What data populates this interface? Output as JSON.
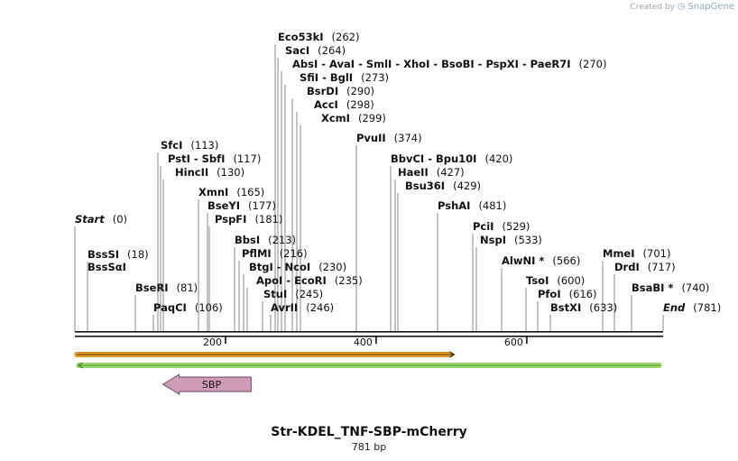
{
  "credit": {
    "prefix": "Created by",
    "brand": "SnapGene"
  },
  "sequence": {
    "name": "Str-KDEL_TNF-SBP-mCherry",
    "length_label": "781 bp",
    "length": 781
  },
  "ruler": {
    "ticks": [
      200,
      400,
      600
    ]
  },
  "sites": [
    {
      "name": "Start",
      "pos": 0,
      "pos_label": "(0)",
      "italic": true
    },
    {
      "name": "BssSI",
      "pos": 18,
      "pos_label": "(18)"
    },
    {
      "name": "BssSαI",
      "pos": 18,
      "pos_label": ""
    },
    {
      "name": "BseRI",
      "pos": 81,
      "pos_label": "(81)"
    },
    {
      "name": "PaqCI",
      "pos": 106,
      "pos_label": "(106)"
    },
    {
      "name": "SfcI",
      "pos": 113,
      "pos_label": "(113)"
    },
    {
      "name": "PstI  -  SbfI",
      "pos": 117,
      "pos_label": "(117)"
    },
    {
      "name": "HincII",
      "pos": 130,
      "pos_label": "(130)"
    },
    {
      "name": "XmnI",
      "pos": 165,
      "pos_label": "(165)"
    },
    {
      "name": "BseYI",
      "pos": 177,
      "pos_label": "(177)"
    },
    {
      "name": "PspFI",
      "pos": 181,
      "pos_label": "(181)"
    },
    {
      "name": "BbsI",
      "pos": 213,
      "pos_label": "(213)"
    },
    {
      "name": "PflMI",
      "pos": 216,
      "pos_label": "(216)"
    },
    {
      "name": "BtgI  -  NcoI",
      "pos": 230,
      "pos_label": "(230)"
    },
    {
      "name": "ApoI  -  EcoRI",
      "pos": 235,
      "pos_label": "(235)"
    },
    {
      "name": "StuI",
      "pos": 245,
      "pos_label": "(245)"
    },
    {
      "name": "AvrII",
      "pos": 246,
      "pos_label": "(246)"
    },
    {
      "name": "Eco53kI",
      "pos": 262,
      "pos_label": "(262)"
    },
    {
      "name": "SacI",
      "pos": 264,
      "pos_label": "(264)"
    },
    {
      "name": "AbsI  -  AvaI  -  SmlI  -  XhoI  -  BsoBI  -  PspXI  -  PaeR7I",
      "pos": 270,
      "pos_label": "(270)"
    },
    {
      "name": "SfiI  -  BglI",
      "pos": 273,
      "pos_label": "(273)"
    },
    {
      "name": "BsrDI",
      "pos": 290,
      "pos_label": "(290)"
    },
    {
      "name": "AccI",
      "pos": 298,
      "pos_label": "(298)"
    },
    {
      "name": "XcmI",
      "pos": 299,
      "pos_label": "(299)"
    },
    {
      "name": "PvuII",
      "pos": 374,
      "pos_label": "(374)"
    },
    {
      "name": "BbvCI  -  Bpu10I",
      "pos": 420,
      "pos_label": "(420)"
    },
    {
      "name": "HaeII",
      "pos": 427,
      "pos_label": "(427)"
    },
    {
      "name": "Bsu36I",
      "pos": 429,
      "pos_label": "(429)"
    },
    {
      "name": "PshAI",
      "pos": 481,
      "pos_label": "(481)"
    },
    {
      "name": "PciI",
      "pos": 529,
      "pos_label": "(529)"
    },
    {
      "name": "NspI",
      "pos": 533,
      "pos_label": "(533)"
    },
    {
      "name": "AlwNI *",
      "pos": 566,
      "pos_label": "(566)"
    },
    {
      "name": "TsoI",
      "pos": 600,
      "pos_label": "(600)"
    },
    {
      "name": "PfoI",
      "pos": 616,
      "pos_label": "(616)"
    },
    {
      "name": "BstXI",
      "pos": 633,
      "pos_label": "(633)"
    },
    {
      "name": "MmeI",
      "pos": 701,
      "pos_label": "(701)"
    },
    {
      "name": "DrdI",
      "pos": 717,
      "pos_label": "(717)"
    },
    {
      "name": "BsaBI *",
      "pos": 740,
      "pos_label": "(740)"
    },
    {
      "name": "End",
      "pos": 781,
      "pos_label": "(781)",
      "italic": true
    }
  ],
  "features": [
    {
      "name": "orange-track",
      "start": 0,
      "end": 506,
      "direction": "forward",
      "color": "#f5a623",
      "stroke": "#c77a00"
    },
    {
      "name": "green-track",
      "start": 0,
      "end": 781,
      "direction": "reverse",
      "color": "#a6e07a",
      "stroke": "#3c8a1a"
    },
    {
      "name": "SBP",
      "label": "SBP",
      "start": 117,
      "end": 234,
      "direction": "reverse",
      "color": "#cf9bb6",
      "stroke": "#6b4a5b"
    }
  ]
}
